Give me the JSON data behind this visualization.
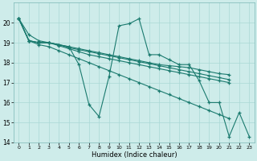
{
  "bg_color": "#ceecea",
  "grid_color": "#aad8d5",
  "line_color": "#1a7a6e",
  "xlabel": "Humidex (Indice chaleur)",
  "ylim": [
    14,
    21
  ],
  "xlim": [
    -0.5,
    23.5
  ],
  "yticks": [
    14,
    15,
    16,
    17,
    18,
    19,
    20
  ],
  "xticks": [
    0,
    1,
    2,
    3,
    4,
    5,
    6,
    7,
    8,
    9,
    10,
    11,
    12,
    13,
    14,
    15,
    16,
    17,
    18,
    19,
    20,
    21,
    22,
    23
  ],
  "jagged_x": [
    0,
    1,
    2,
    3,
    4,
    5,
    6,
    7,
    8,
    9,
    10,
    11,
    12,
    13,
    14,
    15,
    16,
    17,
    18,
    19,
    20,
    21,
    22,
    23
  ],
  "jagged_y": [
    20.2,
    19.4,
    19.1,
    19.0,
    18.9,
    18.8,
    17.9,
    15.9,
    15.3,
    17.3,
    19.85,
    19.95,
    20.2,
    18.4,
    18.4,
    18.15,
    17.9,
    17.9,
    17.1,
    16.0,
    16.0,
    14.3,
    15.5,
    14.3
  ],
  "smooth1_x": [
    0,
    1,
    2,
    3,
    4,
    5,
    6,
    7,
    8,
    9,
    10,
    11,
    12,
    13,
    14,
    15,
    16,
    17,
    18,
    19,
    20,
    21
  ],
  "smooth1_y": [
    20.2,
    19.1,
    19.0,
    19.0,
    18.9,
    18.8,
    18.7,
    18.6,
    18.5,
    18.4,
    18.3,
    18.2,
    18.1,
    18.0,
    17.9,
    17.85,
    17.8,
    17.75,
    17.65,
    17.55,
    17.45,
    17.4
  ],
  "smooth2_x": [
    0,
    1,
    2,
    3,
    4,
    5,
    6,
    7,
    8,
    9,
    10,
    11,
    12,
    13,
    14,
    15,
    16,
    17,
    18,
    19,
    20,
    21
  ],
  "smooth2_y": [
    20.2,
    19.1,
    19.0,
    19.0,
    18.9,
    18.75,
    18.65,
    18.55,
    18.45,
    18.35,
    18.25,
    18.15,
    18.05,
    17.95,
    17.85,
    17.75,
    17.65,
    17.55,
    17.45,
    17.35,
    17.25,
    17.15
  ],
  "smooth3_x": [
    0,
    1,
    2,
    3,
    4,
    5,
    6,
    7,
    8,
    9,
    10,
    11,
    12,
    13,
    14,
    15,
    16,
    17,
    18,
    19,
    20,
    21
  ],
  "smooth3_y": [
    20.2,
    19.1,
    19.0,
    19.0,
    18.85,
    18.7,
    18.55,
    18.4,
    18.3,
    18.2,
    18.1,
    18.0,
    17.9,
    17.8,
    17.7,
    17.6,
    17.5,
    17.4,
    17.3,
    17.2,
    17.1,
    17.0
  ],
  "smooth4_x": [
    0,
    1,
    2,
    3,
    4,
    5,
    6,
    7,
    8,
    9,
    10,
    11,
    12,
    13,
    14,
    15,
    16,
    17,
    18,
    19,
    20,
    21
  ],
  "smooth4_y": [
    20.2,
    19.1,
    18.9,
    18.8,
    18.6,
    18.4,
    18.2,
    18.0,
    17.8,
    17.6,
    17.4,
    17.2,
    17.0,
    16.8,
    16.6,
    16.4,
    16.2,
    16.0,
    15.8,
    15.6,
    15.4,
    15.2
  ]
}
